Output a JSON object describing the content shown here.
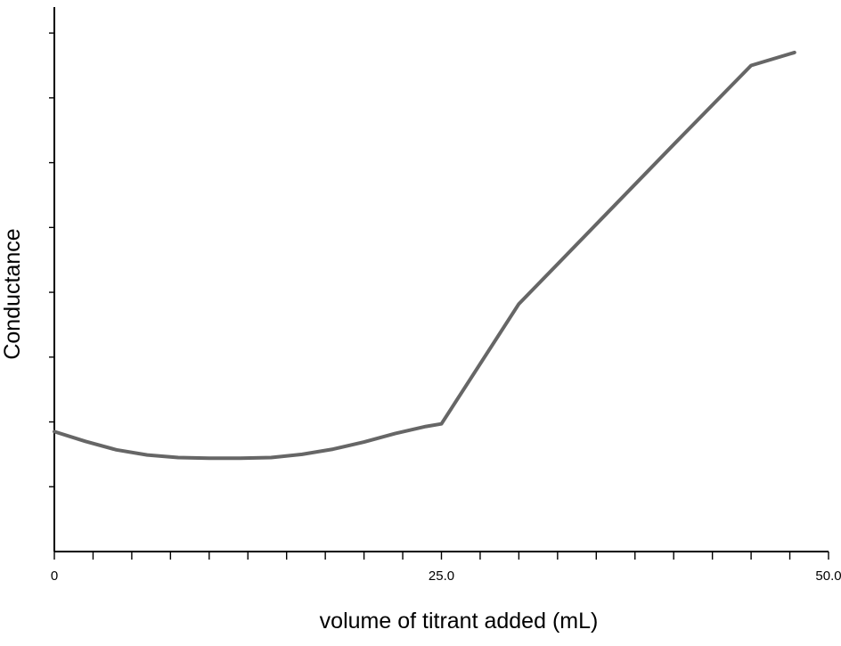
{
  "chart_data": {
    "type": "line",
    "title": "",
    "xlabel": "volume of titrant added (mL)",
    "ylabel": "Conductance",
    "xlim": [
      0,
      50
    ],
    "ylim": [
      0,
      8.4
    ],
    "x_tick_labels": [
      "0",
      "25.0",
      "50.0"
    ],
    "x_tick_label_values": [
      0,
      25,
      50
    ],
    "x_minor_step": 2.5,
    "y_tick_values": [
      1,
      2,
      3,
      4,
      5,
      6,
      7,
      8
    ],
    "y_tick_labels_shown": false,
    "grid": false,
    "legend": "none",
    "series": [
      {
        "color": "#666666",
        "x": [
          0,
          2,
          4,
          6,
          8,
          10,
          12,
          14,
          16,
          18,
          20,
          22,
          24,
          25,
          30,
          35,
          40,
          45,
          47.8
        ],
        "y": [
          1.85,
          1.7,
          1.57,
          1.49,
          1.45,
          1.44,
          1.44,
          1.45,
          1.5,
          1.58,
          1.69,
          1.82,
          1.93,
          1.97,
          3.82,
          5.05,
          6.28,
          7.5,
          7.7
        ]
      }
    ]
  }
}
